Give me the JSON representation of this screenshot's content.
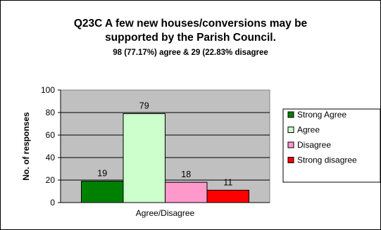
{
  "chart_data": {
    "type": "bar",
    "title": "Q23C A few new houses/conversions may be supported by the Parish Council.",
    "title_lines": [
      "Q23C A few new houses/conversions may be",
      "supported by the Parish Council."
    ],
    "subtitle": "98 (77.17%) agree & 29 (22.83% disagree",
    "xlabel": "Agree/Disagree",
    "ylabel": "No. of responses",
    "ylim": [
      0,
      100
    ],
    "yticks": [
      0,
      20,
      40,
      60,
      80,
      100
    ],
    "grid": true,
    "legend_position": "right",
    "series": [
      {
        "name": "Strong Agree",
        "value": 19,
        "color": "#008000"
      },
      {
        "name": "Agree",
        "value": 79,
        "color": "#CCFFCC"
      },
      {
        "name": "Disagree",
        "value": 18,
        "color": "#FF99CC"
      },
      {
        "name": "Strong disagree",
        "value": 11,
        "color": "#FF0000"
      }
    ],
    "plot_background": "#C0C0C0"
  }
}
